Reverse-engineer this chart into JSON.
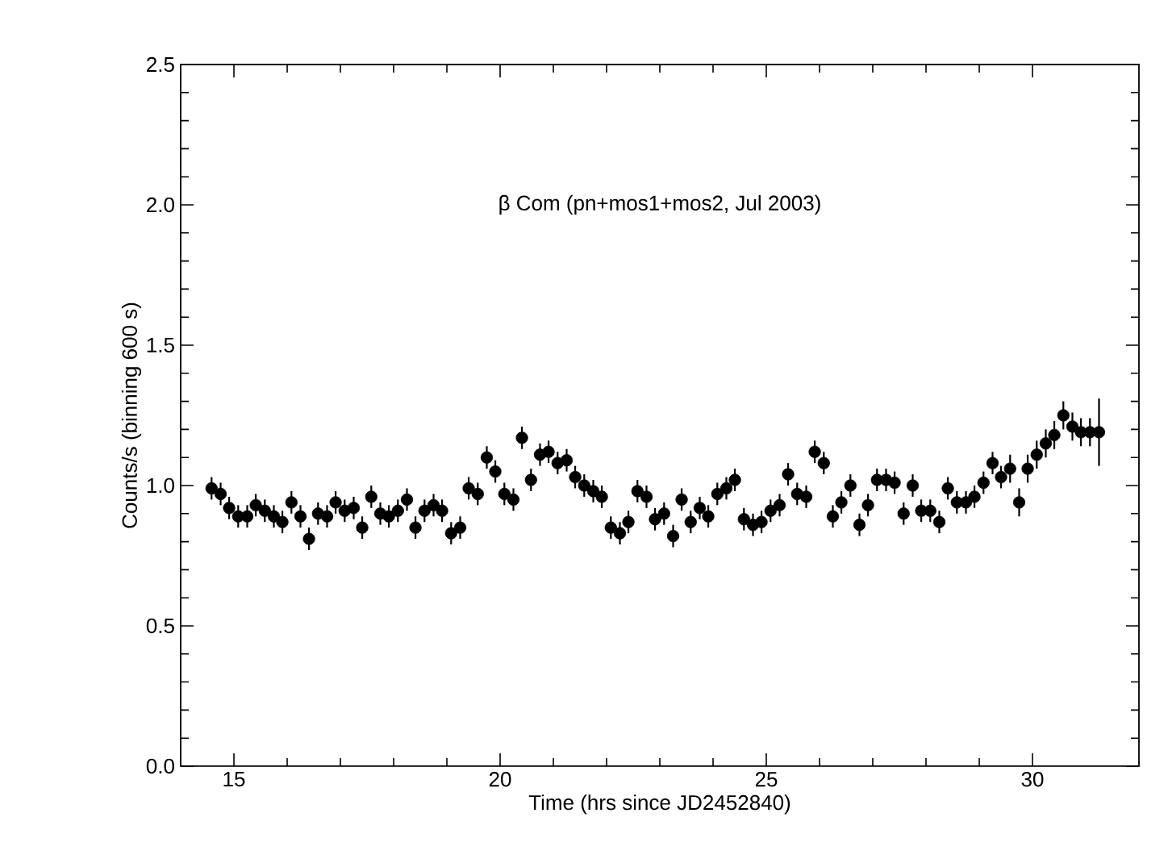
{
  "chart_data": {
    "type": "scatter",
    "annotations": [
      "β  Com (pn+mos1+mos2, Jul 2003)"
    ],
    "xlabel": "Time (hrs since JD2452840)",
    "ylabel": "Counts/s (binning 600 s)",
    "xlim": [
      14,
      32
    ],
    "xticks": [
      15,
      20,
      25,
      30
    ],
    "ylim": [
      0,
      2.5
    ],
    "yticks": [
      {
        "value": 0,
        "label": "0.0"
      },
      {
        "value": 0.5,
        "label": "0.5"
      },
      {
        "value": 1,
        "label": "1.0"
      },
      {
        "value": 1.5,
        "label": "1.5"
      },
      {
        "value": 2,
        "label": "2.0"
      },
      {
        "value": 2.5,
        "label": "2.5"
      }
    ],
    "marker": "circle",
    "series": [
      {
        "color": "#000000",
        "x": [
          14.58,
          14.75,
          14.91,
          15.08,
          15.25,
          15.41,
          15.58,
          15.75,
          15.91,
          16.08,
          16.25,
          16.41,
          16.58,
          16.75,
          16.91,
          17.08,
          17.25,
          17.41,
          17.58,
          17.75,
          17.91,
          18.08,
          18.25,
          18.41,
          18.58,
          18.75,
          18.91,
          19.08,
          19.25,
          19.41,
          19.58,
          19.75,
          19.91,
          20.08,
          20.25,
          20.41,
          20.58,
          20.75,
          20.91,
          21.08,
          21.25,
          21.41,
          21.58,
          21.75,
          21.91,
          22.08,
          22.25,
          22.41,
          22.58,
          22.75,
          22.91,
          23.08,
          23.25,
          23.41,
          23.58,
          23.75,
          23.91,
          24.08,
          24.25,
          24.41,
          24.58,
          24.75,
          24.91,
          25.08,
          25.25,
          25.41,
          25.58,
          25.75,
          25.91,
          26.08,
          26.25,
          26.41,
          26.58,
          26.75,
          26.91,
          27.08,
          27.25,
          27.41,
          27.58,
          27.75,
          27.91,
          28.08,
          28.25,
          28.41,
          28.58,
          28.75,
          28.91,
          29.08,
          29.25,
          29.41,
          29.58,
          29.75,
          29.91,
          30.08,
          30.25,
          30.41,
          30.58,
          30.75,
          30.91,
          31.08,
          31.25
        ],
        "values": [
          0.99,
          0.97,
          0.92,
          0.89,
          0.89,
          0.93,
          0.91,
          0.89,
          0.87,
          0.94,
          0.89,
          0.81,
          0.9,
          0.89,
          0.94,
          0.91,
          0.92,
          0.85,
          0.96,
          0.9,
          0.89,
          0.91,
          0.95,
          0.85,
          0.91,
          0.93,
          0.91,
          0.83,
          0.85,
          0.99,
          0.97,
          1.1,
          1.05,
          0.97,
          0.95,
          1.17,
          1.02,
          1.11,
          1.12,
          1.08,
          1.09,
          1.03,
          1.0,
          0.98,
          0.96,
          0.85,
          0.83,
          0.87,
          0.98,
          0.96,
          0.88,
          0.9,
          0.82,
          0.95,
          0.87,
          0.92,
          0.89,
          0.97,
          0.99,
          1.02,
          0.88,
          0.86,
          0.87,
          0.91,
          0.93,
          1.04,
          0.97,
          0.96,
          1.12,
          1.08,
          0.89,
          0.94,
          1.0,
          0.86,
          0.93,
          1.02,
          1.02,
          1.01,
          0.9,
          1.0,
          0.91,
          0.91,
          0.87,
          0.99,
          0.94,
          0.94,
          0.96,
          1.01,
          1.08,
          1.03,
          1.06,
          0.94,
          1.06,
          1.11,
          1.15,
          1.18,
          1.25,
          1.21,
          1.19,
          1.19,
          1.19
        ],
        "errors": [
          0.04,
          0.04,
          0.04,
          0.04,
          0.04,
          0.04,
          0.04,
          0.04,
          0.04,
          0.04,
          0.04,
          0.04,
          0.04,
          0.04,
          0.04,
          0.04,
          0.04,
          0.04,
          0.04,
          0.04,
          0.04,
          0.04,
          0.04,
          0.04,
          0.04,
          0.04,
          0.04,
          0.04,
          0.04,
          0.04,
          0.04,
          0.04,
          0.04,
          0.04,
          0.04,
          0.04,
          0.04,
          0.04,
          0.04,
          0.04,
          0.04,
          0.04,
          0.04,
          0.04,
          0.04,
          0.04,
          0.04,
          0.04,
          0.04,
          0.04,
          0.04,
          0.04,
          0.04,
          0.04,
          0.04,
          0.04,
          0.04,
          0.04,
          0.04,
          0.04,
          0.04,
          0.04,
          0.04,
          0.04,
          0.04,
          0.04,
          0.04,
          0.04,
          0.04,
          0.04,
          0.04,
          0.04,
          0.04,
          0.04,
          0.04,
          0.04,
          0.04,
          0.04,
          0.04,
          0.04,
          0.04,
          0.04,
          0.04,
          0.04,
          0.04,
          0.04,
          0.04,
          0.04,
          0.04,
          0.04,
          0.05,
          0.05,
          0.05,
          0.05,
          0.05,
          0.05,
          0.05,
          0.05,
          0.05,
          0.05,
          0.12
        ]
      }
    ]
  }
}
